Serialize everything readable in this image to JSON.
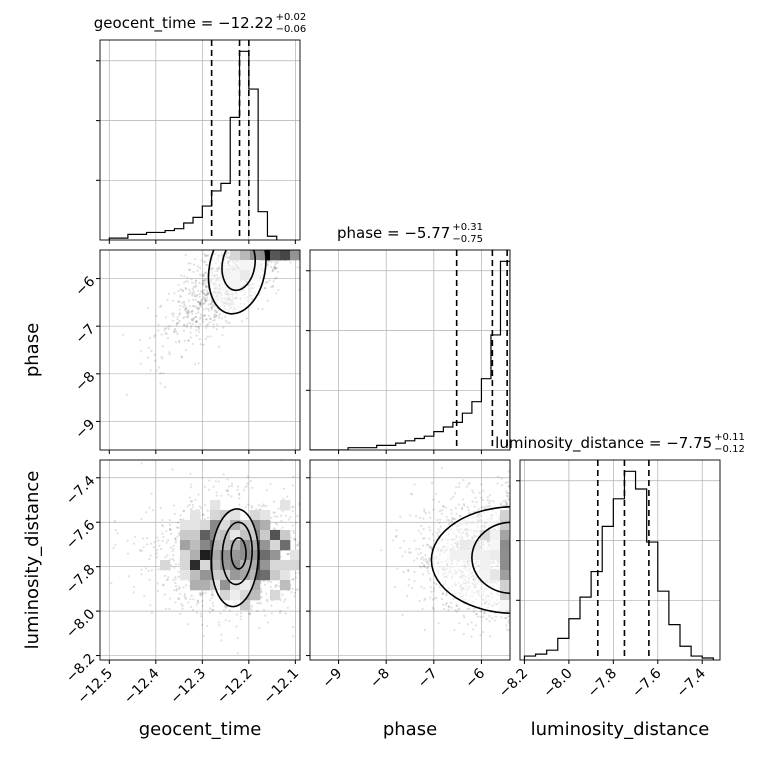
{
  "chart_data": {
    "type": "corner",
    "parameters": [
      "geocent_time",
      "phase",
      "luminosity_distance"
    ],
    "titles": [
      {
        "param": "geocent_time",
        "text": "geocent_time = −12.22",
        "plus": "+0.02",
        "minus": "−0.06",
        "median": -12.22,
        "q_low": -12.28,
        "q_high": -12.2
      },
      {
        "param": "phase",
        "text": "phase = −5.77",
        "plus": "+0.31",
        "minus": "−0.75",
        "median": -5.77,
        "q_low": -6.52,
        "q_high": -5.46
      },
      {
        "param": "luminosity_distance",
        "text": "luminosity_distance = −7.75",
        "plus": "+0.11",
        "minus": "−0.12",
        "median": -7.75,
        "q_low": -7.87,
        "q_high": -7.64
      }
    ],
    "axes": {
      "geocent_time": {
        "label": "geocent_time",
        "range": [
          -12.52,
          -12.09
        ],
        "ticks": [
          -12.5,
          -12.4,
          -12.3,
          -12.2,
          -12.1
        ],
        "tick_labels": [
          "−12.5",
          "−12.4",
          "−12.3",
          "−12.2",
          "−12.1"
        ]
      },
      "phase": {
        "label": "phase",
        "range": [
          -9.6,
          -5.4
        ],
        "ticks": [
          -9,
          -8,
          -7,
          -6
        ],
        "tick_labels": [
          "−9",
          "−8",
          "−7",
          "−6"
        ]
      },
      "luminosity_distance": {
        "label": "luminosity_distance",
        "range": [
          -8.22,
          -7.32
        ],
        "ticks": [
          -8.2,
          -8.0,
          -7.8,
          -7.6,
          -7.4
        ],
        "tick_labels": [
          "−8.2",
          "−8.0",
          "−7.8",
          "−7.6",
          "−7.4"
        ]
      }
    },
    "histograms": {
      "geocent_time": {
        "bin_edges": [
          -12.5,
          -12.48,
          -12.46,
          -12.44,
          -12.42,
          -12.4,
          -12.38,
          -12.36,
          -12.34,
          -12.32,
          -12.3,
          -12.28,
          -12.26,
          -12.24,
          -12.22,
          -12.2,
          -12.18,
          -12.16,
          -12.14
        ],
        "counts": [
          1,
          1,
          3,
          3,
          4,
          4,
          5,
          6,
          9,
          12,
          18,
          26,
          30,
          65,
          100,
          80,
          15,
          2
        ]
      },
      "phase": {
        "bin_edges": [
          -9.6,
          -9.4,
          -9.2,
          -9.0,
          -8.8,
          -8.6,
          -8.4,
          -8.2,
          -8.0,
          -7.8,
          -7.6,
          -7.4,
          -7.2,
          -7.0,
          -6.8,
          -6.6,
          -6.4,
          -6.2,
          -6.0,
          -5.8,
          -5.6,
          -5.4
        ],
        "counts": [
          0,
          0,
          0,
          0,
          1,
          1,
          1,
          2,
          2,
          3,
          4,
          5,
          6,
          8,
          10,
          12,
          16,
          21,
          31,
          50,
          82
        ]
      },
      "luminosity_distance": {
        "bin_edges": [
          -8.2,
          -8.15,
          -8.1,
          -8.05,
          -8.0,
          -7.95,
          -7.9,
          -7.85,
          -7.8,
          -7.75,
          -7.7,
          -7.65,
          -7.6,
          -7.55,
          -7.5,
          -7.45,
          -7.4,
          -7.35
        ],
        "counts": [
          2,
          3,
          5,
          11,
          21,
          32,
          45,
          68,
          82,
          96,
          87,
          60,
          35,
          18,
          7,
          2,
          1
        ]
      }
    },
    "scatter_panels": [
      {
        "x": "geocent_time",
        "y": "phase",
        "center": [
          -12.22,
          -5.8
        ],
        "spread": [
          0.075,
          0.72
        ],
        "corr": 0.8,
        "n": 1600,
        "contours": [
          {
            "cx": -12.225,
            "cy": -5.8,
            "rx": 0.06,
            "ry": 0.95,
            "tilt": 0.35
          },
          {
            "cx": -12.222,
            "cy": -5.7,
            "rx": 0.035,
            "ry": 0.55,
            "tilt": 0.3
          }
        ]
      },
      {
        "x": "geocent_time",
        "y": "luminosity_distance",
        "center": [
          -12.23,
          -7.75
        ],
        "spread": [
          0.085,
          0.13
        ],
        "corr": 0.0,
        "n": 1600,
        "contours": [
          {
            "cx": -12.23,
            "cy": -7.76,
            "rx": 0.05,
            "ry": 0.22,
            "tilt": 0.1
          },
          {
            "cx": -12.225,
            "cy": -7.74,
            "rx": 0.032,
            "ry": 0.14,
            "tilt": 0.1
          },
          {
            "cx": -12.222,
            "cy": -7.74,
            "rx": 0.016,
            "ry": 0.07,
            "tilt": 0.0
          }
        ]
      },
      {
        "x": "phase",
        "y": "luminosity_distance",
        "center": [
          -5.9,
          -7.75
        ],
        "spread": [
          0.75,
          0.13
        ],
        "corr": 0.0,
        "n": 1600,
        "contours": [
          {
            "cx": -5.3,
            "cy": -7.77,
            "rx": 1.75,
            "ry": 0.24,
            "tilt": 0.0
          },
          {
            "cx": -5.35,
            "cy": -7.76,
            "rx": 0.85,
            "ry": 0.16,
            "tilt": 0.0
          }
        ]
      }
    ],
    "grid": true,
    "quantile_lines": "dashed"
  }
}
